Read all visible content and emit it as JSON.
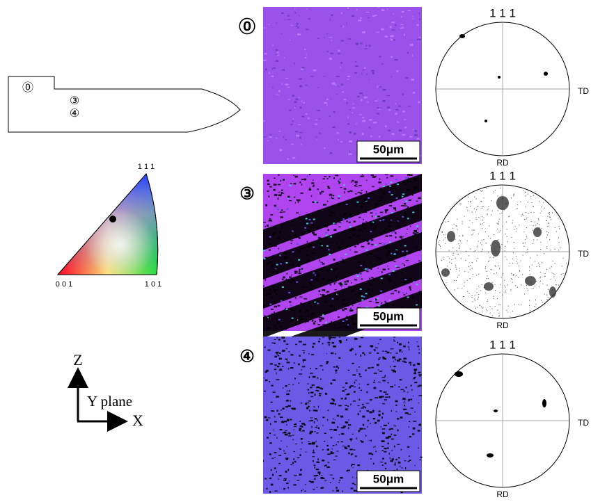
{
  "sample_sketch": {
    "labels": [
      "⓪",
      "③",
      "④"
    ]
  },
  "ipf_triangle": {
    "top": "1 1 1",
    "left": "0 0 1",
    "right": "1 0 1"
  },
  "axes": {
    "vertical": "Z",
    "plane": "Y plane",
    "horizontal": "X"
  },
  "panels": [
    {
      "label": "⓪",
      "scale_bar": "50μm",
      "pole_figure": {
        "title": "1 1 1",
        "right": "TD",
        "bottom": "RD"
      }
    },
    {
      "label": "③",
      "scale_bar": "50μm",
      "pole_figure": {
        "title": "1 1 1",
        "right": "TD",
        "bottom": "RD"
      }
    },
    {
      "label": "④",
      "scale_bar": "50μm",
      "pole_figure": {
        "title": "1 1 1",
        "right": "TD",
        "bottom": "RD"
      }
    }
  ]
}
